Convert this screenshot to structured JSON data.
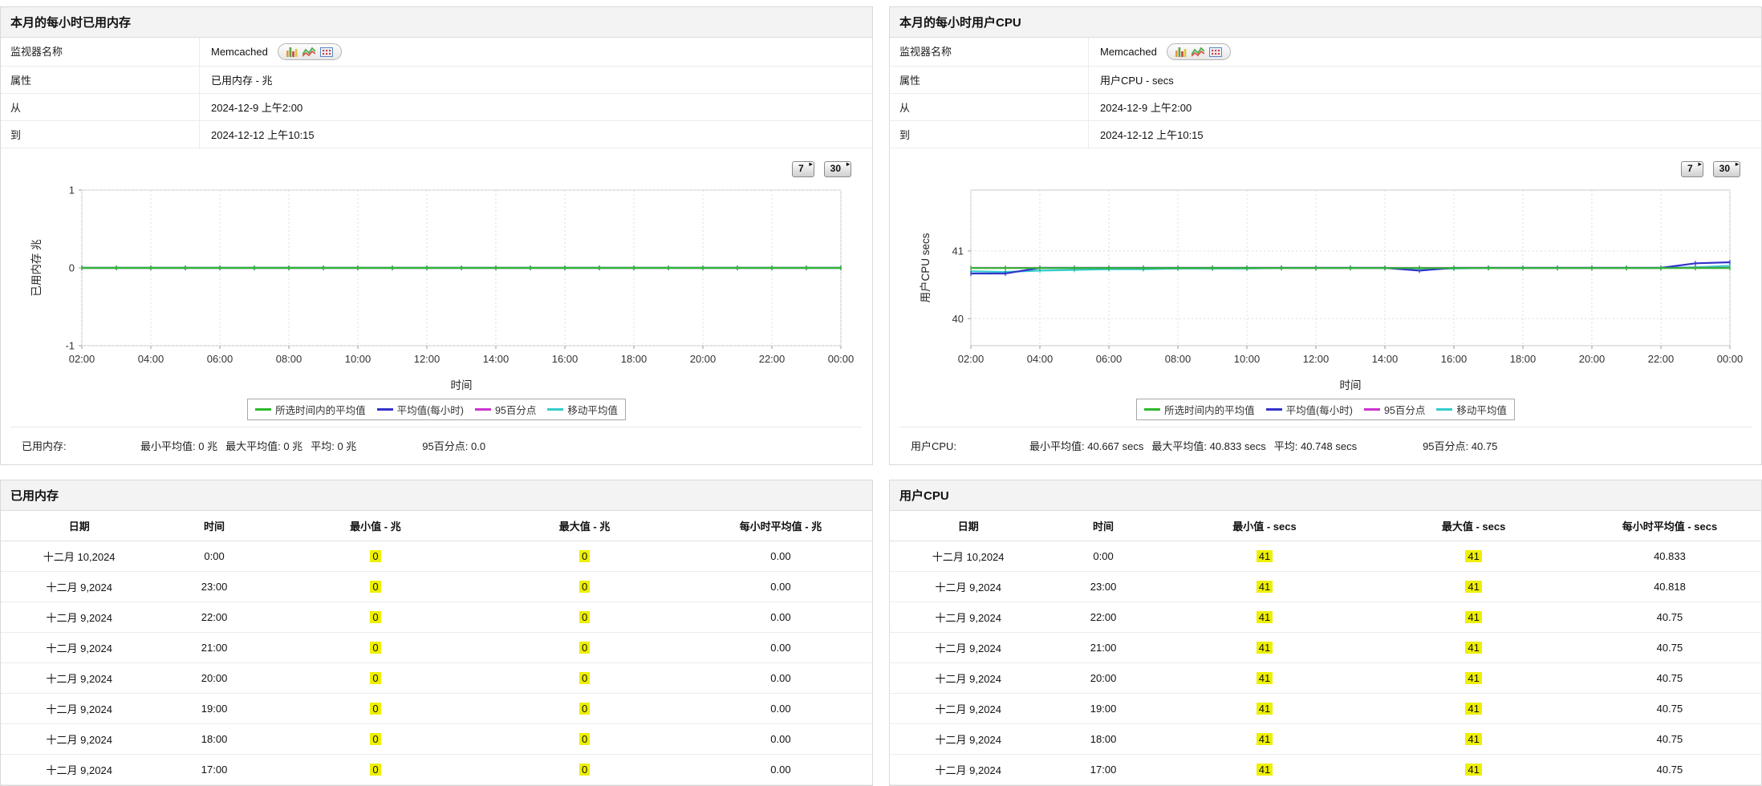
{
  "colors": {
    "highlight": "#eef000",
    "title_bar_bg": "#f3f3f3",
    "panel_border": "#d9d9d9",
    "series_green": "#2eb82e",
    "series_blue": "#3333cc",
    "series_magenta": "#cc33cc",
    "series_cyan": "#33cccc"
  },
  "panels": [
    {
      "title": "本月的每小时已用内存",
      "info": {
        "monitor_label": "监视器名称",
        "monitor_value": "Memcached",
        "attribute_label": "属性",
        "attribute_value": "已用内存 - 兆",
        "from_label": "从",
        "from_value": "2024-12-9 上午2:00",
        "to_label": "到",
        "to_value": "2024-12-12 上午10:15"
      },
      "range_buttons": [
        "7",
        "30"
      ],
      "summary": {
        "metric": "已用内存:",
        "min_label": "最小平均值:",
        "min_value": "0 兆",
        "max_label": "最大平均值:",
        "max_value": "0 兆",
        "avg_label": "平均:",
        "avg_value": "0 兆",
        "p95_label": "95百分点:",
        "p95_value": "0.0"
      },
      "table": {
        "title": "已用内存",
        "columns": [
          "日期",
          "时间",
          "最小值 - 兆",
          "最大值 - 兆",
          "每小时平均值 - 兆"
        ],
        "rows": [
          [
            "十二月 10,2024",
            "0:00",
            "0",
            "0",
            "0.00"
          ],
          [
            "十二月 9,2024",
            "23:00",
            "0",
            "0",
            "0.00"
          ],
          [
            "十二月 9,2024",
            "22:00",
            "0",
            "0",
            "0.00"
          ],
          [
            "十二月 9,2024",
            "21:00",
            "0",
            "0",
            "0.00"
          ],
          [
            "十二月 9,2024",
            "20:00",
            "0",
            "0",
            "0.00"
          ],
          [
            "十二月 9,2024",
            "19:00",
            "0",
            "0",
            "0.00"
          ],
          [
            "十二月 9,2024",
            "18:00",
            "0",
            "0",
            "0.00"
          ],
          [
            "十二月 9,2024",
            "17:00",
            "0",
            "0",
            "0.00"
          ]
        ]
      }
    },
    {
      "title": "本月的每小时用户CPU",
      "info": {
        "monitor_label": "监视器名称",
        "monitor_value": "Memcached",
        "attribute_label": "属性",
        "attribute_value": "用户CPU - secs",
        "from_label": "从",
        "from_value": "2024-12-9 上午2:00",
        "to_label": "到",
        "to_value": "2024-12-12 上午10:15"
      },
      "range_buttons": [
        "7",
        "30"
      ],
      "summary": {
        "metric": "用户CPU:",
        "min_label": "最小平均值:",
        "min_value": "40.667  secs",
        "max_label": "最大平均值:",
        "max_value": "40.833  secs",
        "avg_label": "平均:",
        "avg_value": "40.748  secs",
        "p95_label": "95百分点:",
        "p95_value": "40.75"
      },
      "table": {
        "title": "用户CPU",
        "columns": [
          "日期",
          "时间",
          "最小值 - secs",
          "最大值 - secs",
          "每小时平均值 - secs"
        ],
        "rows": [
          [
            "十二月 10,2024",
            "0:00",
            "41",
            "41",
            "40.833"
          ],
          [
            "十二月 9,2024",
            "23:00",
            "41",
            "41",
            "40.818"
          ],
          [
            "十二月 9,2024",
            "22:00",
            "41",
            "41",
            "40.75"
          ],
          [
            "十二月 9,2024",
            "21:00",
            "41",
            "41",
            "40.75"
          ],
          [
            "十二月 9,2024",
            "20:00",
            "41",
            "41",
            "40.75"
          ],
          [
            "十二月 9,2024",
            "19:00",
            "41",
            "41",
            "40.75"
          ],
          [
            "十二月 9,2024",
            "18:00",
            "41",
            "41",
            "40.75"
          ],
          [
            "十二月 9,2024",
            "17:00",
            "41",
            "41",
            "40.75"
          ]
        ]
      }
    }
  ],
  "chart_data": [
    {
      "type": "line",
      "title": "本月的每小时已用内存",
      "xlabel": "时间",
      "ylabel": "已用内存  兆",
      "x": [
        "02:00",
        "03:00",
        "04:00",
        "05:00",
        "06:00",
        "07:00",
        "08:00",
        "09:00",
        "10:00",
        "11:00",
        "12:00",
        "13:00",
        "14:00",
        "15:00",
        "16:00",
        "17:00",
        "18:00",
        "19:00",
        "20:00",
        "21:00",
        "22:00",
        "23:00",
        "00:00"
      ],
      "xticks": [
        "02:00",
        "04:00",
        "06:00",
        "08:00",
        "10:00",
        "12:00",
        "14:00",
        "16:00",
        "18:00",
        "20:00",
        "22:00",
        "00:00"
      ],
      "ylim": [
        -1,
        1
      ],
      "yticks": [
        1,
        0,
        -1
      ],
      "grid": true,
      "legend_position": "bottom",
      "series": [
        {
          "name": "所选时间内的平均值",
          "color": "#2eb82e",
          "values": [
            0,
            0,
            0,
            0,
            0,
            0,
            0,
            0,
            0,
            0,
            0,
            0,
            0,
            0,
            0,
            0,
            0,
            0,
            0,
            0,
            0,
            0,
            0
          ]
        },
        {
          "name": "平均值(每小时)",
          "color": "#3333cc",
          "values": [
            0,
            0,
            0,
            0,
            0,
            0,
            0,
            0,
            0,
            0,
            0,
            0,
            0,
            0,
            0,
            0,
            0,
            0,
            0,
            0,
            0,
            0,
            0
          ]
        },
        {
          "name": "95百分点",
          "color": "#cc33cc",
          "values": [
            0,
            0,
            0,
            0,
            0,
            0,
            0,
            0,
            0,
            0,
            0,
            0,
            0,
            0,
            0,
            0,
            0,
            0,
            0,
            0,
            0,
            0,
            0
          ]
        },
        {
          "name": "移动平均值",
          "color": "#33cccc",
          "values": [
            0,
            0,
            0,
            0,
            0,
            0,
            0,
            0,
            0,
            0,
            0,
            0,
            0,
            0,
            0,
            0,
            0,
            0,
            0,
            0,
            0,
            0,
            0
          ]
        }
      ]
    },
    {
      "type": "line",
      "title": "本月的每小时用户CPU",
      "xlabel": "时间",
      "ylabel": "用户CPU  secs",
      "x": [
        "02:00",
        "03:00",
        "04:00",
        "05:00",
        "06:00",
        "07:00",
        "08:00",
        "09:00",
        "10:00",
        "11:00",
        "12:00",
        "13:00",
        "14:00",
        "15:00",
        "16:00",
        "17:00",
        "18:00",
        "19:00",
        "20:00",
        "21:00",
        "22:00",
        "23:00",
        "00:00"
      ],
      "xticks": [
        "02:00",
        "04:00",
        "06:00",
        "08:00",
        "10:00",
        "12:00",
        "14:00",
        "16:00",
        "18:00",
        "20:00",
        "22:00",
        "00:00"
      ],
      "ylim": [
        39.6,
        41.9
      ],
      "yticks": [
        41,
        40
      ],
      "grid": true,
      "legend_position": "bottom",
      "series": [
        {
          "name": "所选时间内的平均值",
          "color": "#2eb82e",
          "values": [
            40.748,
            40.748,
            40.748,
            40.748,
            40.748,
            40.748,
            40.748,
            40.748,
            40.748,
            40.748,
            40.748,
            40.748,
            40.748,
            40.748,
            40.748,
            40.748,
            40.748,
            40.748,
            40.748,
            40.748,
            40.748,
            40.748,
            40.748
          ]
        },
        {
          "name": "平均值(每小时)",
          "color": "#3333cc",
          "values": [
            40.667,
            40.667,
            40.75,
            40.75,
            40.75,
            40.75,
            40.75,
            40.75,
            40.75,
            40.75,
            40.75,
            40.75,
            40.75,
            40.71,
            40.75,
            40.75,
            40.75,
            40.75,
            40.75,
            40.75,
            40.75,
            40.818,
            40.833
          ]
        },
        {
          "name": "95百分点",
          "color": "#cc33cc",
          "values": [
            40.75,
            40.75,
            40.75,
            40.75,
            40.75,
            40.75,
            40.75,
            40.75,
            40.75,
            40.75,
            40.75,
            40.75,
            40.75,
            40.75,
            40.75,
            40.75,
            40.75,
            40.75,
            40.75,
            40.75,
            40.75,
            40.75,
            40.75
          ]
        },
        {
          "name": "移动平均值",
          "color": "#33cccc",
          "values": [
            40.7,
            40.69,
            40.71,
            40.72,
            40.73,
            40.73,
            40.74,
            40.74,
            40.74,
            40.75,
            40.75,
            40.75,
            40.75,
            40.74,
            40.74,
            40.75,
            40.75,
            40.75,
            40.75,
            40.75,
            40.75,
            40.76,
            40.78
          ]
        }
      ]
    }
  ]
}
